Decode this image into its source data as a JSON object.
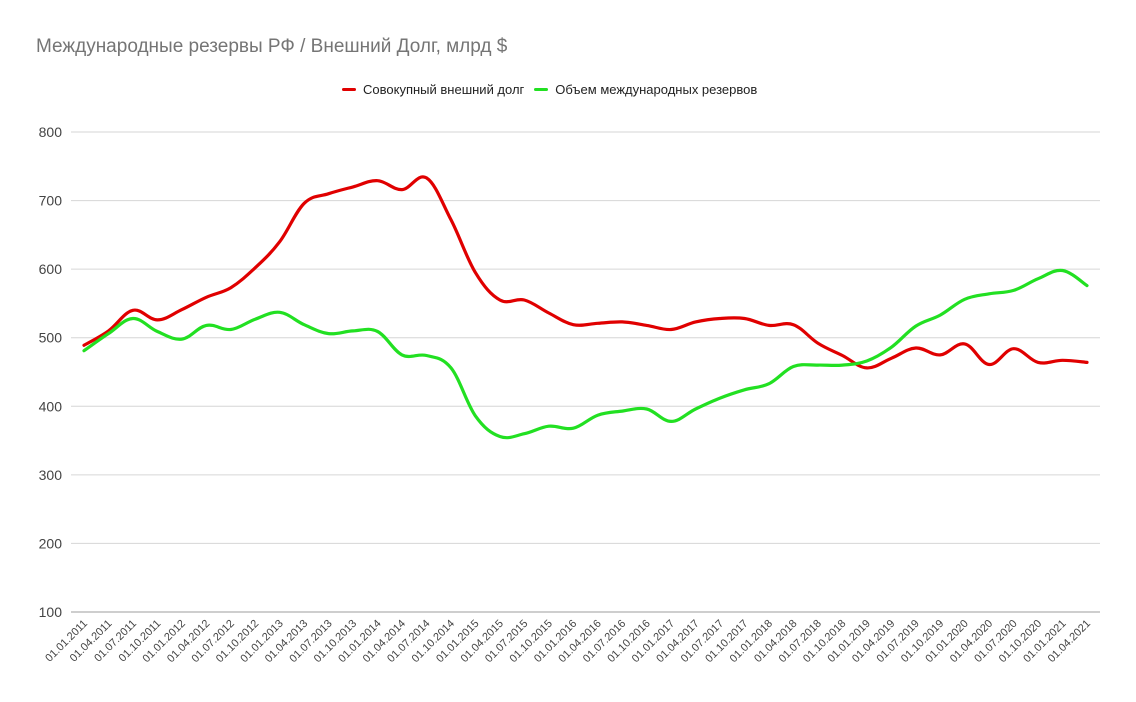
{
  "chart_data": {
    "type": "line",
    "title": "Международные резервы РФ / Внешний Долг,  млрд $",
    "xlabel": "",
    "ylabel": "",
    "ylim": [
      100,
      800
    ],
    "yticks": [
      100,
      200,
      300,
      400,
      500,
      600,
      700,
      800
    ],
    "grid": true,
    "legend_position": "top-center",
    "categories": [
      "01.01.2011",
      "01.04.2011",
      "01.07.2011",
      "01.10.2011",
      "01.01.2012",
      "01.04.2012",
      "01.07.2012",
      "01.10.2012",
      "01.01.2013",
      "01.04.2013",
      "01.07.2013",
      "01.10.2013",
      "01.01.2014",
      "01.04.2014",
      "01.07.2014",
      "01.10.2014",
      "01.01.2015",
      "01.04.2015",
      "01.07.2015",
      "01.10.2015",
      "01.01.2016",
      "01.04.2016",
      "01.07.2016",
      "01.10.2016",
      "01.01.2017",
      "01.04.2017",
      "01.07.2017",
      "01.10.2017",
      "01.01.2018",
      "01.04.2018",
      "01.07.2018",
      "01.10.2018",
      "01.01.2019",
      "01.04.2019",
      "01.07.2019",
      "01.10.2019",
      "01.01.2020",
      "01.04.2020",
      "01.07.2020",
      "01.10.2020",
      "01.01.2021",
      "01.04.2021"
    ],
    "series": [
      {
        "name": "Совокупный внешний долг",
        "color": "#e00000",
        "values": [
          489,
          510,
          540,
          526,
          541,
          559,
          573,
          602,
          640,
          696,
          710,
          720,
          729,
          716,
          733,
          672,
          595,
          555,
          555,
          536,
          519,
          521,
          523,
          518,
          512,
          523,
          528,
          528,
          518,
          519,
          492,
          474,
          456,
          470,
          485,
          475,
          491,
          461,
          484,
          464,
          467,
          464
        ]
      },
      {
        "name": "Объем международных резервов",
        "color": "#22e022",
        "values": [
          481,
          506,
          528,
          509,
          498,
          518,
          512,
          527,
          537,
          519,
          506,
          510,
          509,
          475,
          474,
          456,
          386,
          356,
          360,
          371,
          368,
          387,
          393,
          396,
          378,
          396,
          412,
          424,
          433,
          458,
          460,
          460,
          466,
          486,
          517,
          533,
          556,
          564,
          569,
          586,
          598,
          576
        ]
      }
    ]
  }
}
